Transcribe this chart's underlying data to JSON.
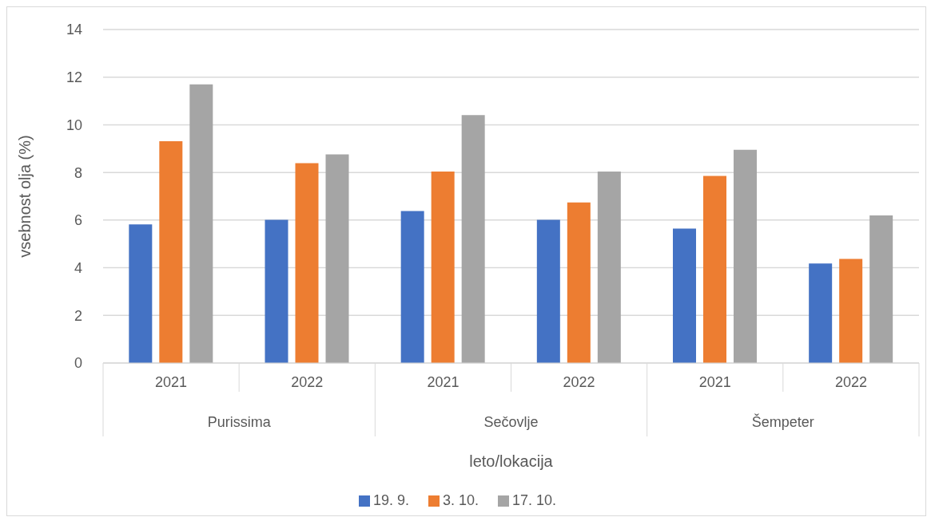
{
  "chart_data": {
    "type": "bar",
    "xlabel": "leto/lokacija",
    "ylabel": "vsebnost olja (%)",
    "categories": [
      "2021",
      "2022",
      "2021",
      "2022",
      "2021",
      "2022"
    ],
    "annotations": [
      "Purissima",
      "Sečovlje",
      "Šempeter"
    ],
    "series": [
      {
        "name": "19. 9.",
        "color": "#4472c4",
        "values": [
          5.82,
          6.01,
          6.38,
          6.01,
          5.64,
          4.18
        ]
      },
      {
        "name": "3. 10.",
        "color": "#ed7d31",
        "values": [
          9.31,
          8.39,
          8.04,
          6.74,
          7.85,
          4.37
        ]
      },
      {
        "name": "17. 10.",
        "color": "#a5a5a5",
        "values": [
          11.7,
          8.76,
          10.41,
          8.04,
          8.95,
          6.2
        ]
      }
    ],
    "ylim": [
      0,
      14
    ],
    "yticks": [
      0,
      2,
      4,
      6,
      8,
      10,
      12,
      14
    ],
    "grid": "y",
    "legend": "bottom"
  }
}
